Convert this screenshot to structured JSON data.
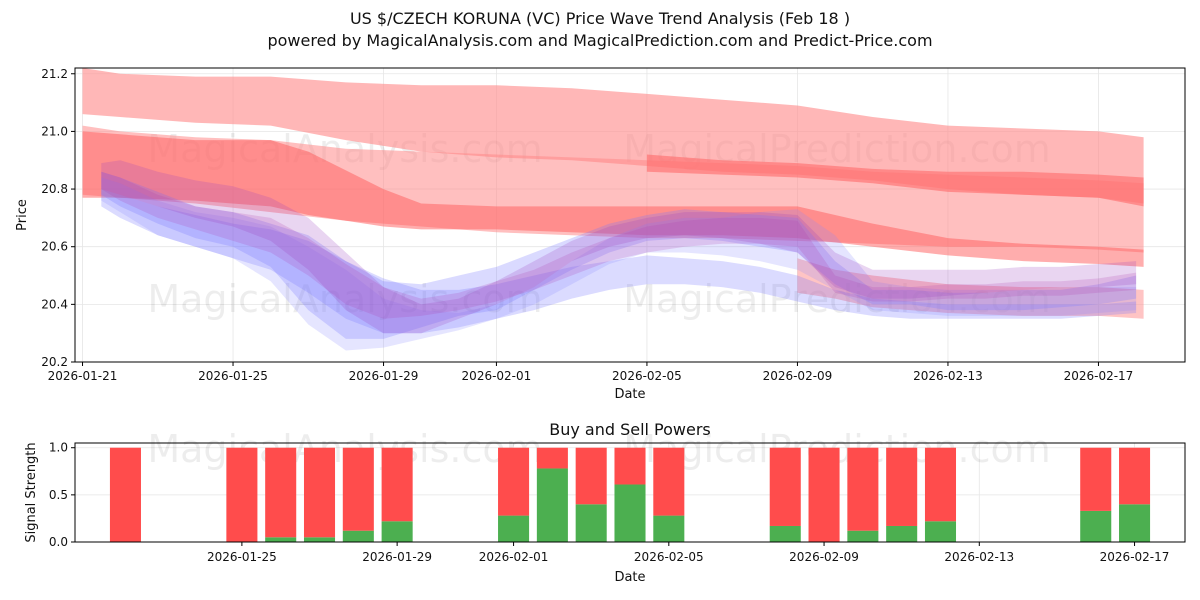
{
  "header": {
    "title": "US $/CZECH KORUNA (VC) Price Wave Trend Analysis (Feb 18 )",
    "subtitle": "powered by MagicalAnalysis.com and MagicalPrediction.com and Predict-Price.com"
  },
  "watermarks": [
    "MagicalAnalysis.com",
    "MagicalPrediction.com"
  ],
  "colors": {
    "buy": "#4caf50",
    "sell": "#ff4c4c",
    "blue_band": "#6f6fff",
    "red_band": "#ff6b6b",
    "purple_band": "#9a3fc0"
  },
  "chart_data": [
    {
      "type": "area",
      "title": "",
      "xlabel": "Date",
      "ylabel": "Price",
      "ylim": [
        20.2,
        21.22
      ],
      "xlim_days": [
        -0.2,
        29.3
      ],
      "x_origin": "2026-01-21",
      "x_ticks": [
        "2026-01-21",
        "2026-01-25",
        "2026-01-29",
        "2026-02-01",
        "2026-02-05",
        "2026-02-09",
        "2026-02-13",
        "2026-02-17"
      ],
      "x_tick_days": [
        0,
        4,
        8,
        11,
        15,
        19,
        23,
        27
      ],
      "y_ticks": [
        20.2,
        20.4,
        20.6,
        20.8,
        21.0,
        21.2
      ],
      "grid": true,
      "bands": [
        {
          "name": "red-wave-upper",
          "color": "#ff8a8a",
          "opacity": 0.62,
          "x": [
            0,
            1,
            3,
            5,
            7,
            9,
            11,
            13,
            15,
            17,
            19,
            21,
            23,
            25,
            27,
            28.2
          ],
          "upper": [
            21.22,
            21.2,
            21.19,
            21.19,
            21.17,
            21.16,
            21.16,
            21.15,
            21.13,
            21.11,
            21.09,
            21.05,
            21.02,
            21.01,
            21.0,
            20.98
          ],
          "lower": [
            21.06,
            21.05,
            21.03,
            21.02,
            20.97,
            20.93,
            20.91,
            20.9,
            20.88,
            20.86,
            20.85,
            20.83,
            20.8,
            20.78,
            20.77,
            20.75
          ]
        },
        {
          "name": "red-wave-broad",
          "color": "#ff8a8a",
          "opacity": 0.55,
          "x": [
            0,
            1,
            3,
            5,
            7,
            9,
            11,
            13,
            15,
            17,
            19,
            21,
            23,
            25,
            27,
            28.2
          ],
          "upper": [
            21.02,
            21.0,
            20.98,
            20.97,
            20.94,
            20.93,
            20.92,
            20.91,
            20.9,
            20.89,
            20.88,
            20.86,
            20.85,
            20.84,
            20.83,
            20.82
          ],
          "lower": [
            20.78,
            20.77,
            20.75,
            20.72,
            20.69,
            20.67,
            20.65,
            20.64,
            20.63,
            20.63,
            20.62,
            20.61,
            20.6,
            20.6,
            20.59,
            20.58
          ]
        },
        {
          "name": "red-wave-core",
          "color": "#ff5c5c",
          "opacity": 0.5,
          "x": [
            0,
            1,
            3,
            5,
            6,
            8,
            9,
            11,
            13,
            15,
            17,
            19,
            21,
            23,
            25,
            27,
            28.2
          ],
          "upper": [
            21.0,
            20.99,
            20.97,
            20.97,
            20.93,
            20.8,
            20.75,
            20.74,
            20.74,
            20.74,
            20.74,
            20.74,
            20.68,
            20.63,
            20.61,
            20.6,
            20.59
          ],
          "lower": [
            20.77,
            20.77,
            20.76,
            20.74,
            20.71,
            20.67,
            20.66,
            20.66,
            20.65,
            20.64,
            20.64,
            20.63,
            20.6,
            20.57,
            20.55,
            20.54,
            20.53
          ]
        },
        {
          "name": "red-wave-lower",
          "color": "#ff8a8a",
          "opacity": 0.5,
          "x": [
            19,
            20,
            21,
            23,
            25,
            27,
            28.2
          ],
          "upper": [
            20.56,
            20.52,
            20.5,
            20.47,
            20.46,
            20.46,
            20.45
          ],
          "lower": [
            20.44,
            20.42,
            20.39,
            20.37,
            20.36,
            20.36,
            20.35
          ]
        },
        {
          "name": "red-wave-upper-right",
          "color": "#ff6b6b",
          "opacity": 0.6,
          "x": [
            15,
            17,
            19,
            21,
            23,
            25,
            27,
            28.2
          ],
          "upper": [
            20.92,
            20.9,
            20.89,
            20.87,
            20.86,
            20.86,
            20.85,
            20.84
          ],
          "lower": [
            20.86,
            20.85,
            20.84,
            20.82,
            20.79,
            20.78,
            20.77,
            20.74
          ]
        },
        {
          "name": "blue-wave-1",
          "color": "#7b7bff",
          "opacity": 0.28,
          "x": [
            0.5,
            1,
            2,
            3,
            4,
            5,
            6,
            7,
            8,
            9,
            10,
            11,
            12,
            13,
            14,
            15,
            16,
            17,
            18,
            19,
            20,
            21,
            22,
            23,
            24,
            25,
            26,
            27,
            28
          ],
          "upper": [
            20.86,
            20.84,
            20.79,
            20.74,
            20.72,
            20.68,
            20.64,
            20.55,
            20.48,
            20.47,
            20.5,
            20.53,
            20.58,
            20.63,
            20.68,
            20.71,
            20.73,
            20.72,
            20.71,
            20.7,
            20.55,
            20.45,
            20.45,
            20.44,
            20.44,
            20.45,
            20.45,
            20.47,
            20.5
          ],
          "lower": [
            20.78,
            20.74,
            20.68,
            20.63,
            20.6,
            20.53,
            20.38,
            20.28,
            20.28,
            20.32,
            20.36,
            20.38,
            20.45,
            20.52,
            20.58,
            20.62,
            20.63,
            20.62,
            20.6,
            20.58,
            20.47,
            20.4,
            20.4,
            20.38,
            20.38,
            20.38,
            20.39,
            20.4,
            20.42
          ]
        },
        {
          "name": "blue-wave-2",
          "color": "#6f6fff",
          "opacity": 0.25,
          "x": [
            0.5,
            1,
            2,
            3,
            4,
            5,
            6,
            7,
            8,
            9,
            10,
            11,
            12,
            13,
            14,
            15,
            16,
            17,
            18,
            19,
            20,
            21,
            22,
            23,
            24,
            25,
            26,
            27,
            28
          ],
          "upper": [
            20.8,
            20.78,
            20.74,
            20.71,
            20.68,
            20.66,
            20.62,
            20.55,
            20.49,
            20.45,
            20.45,
            20.47,
            20.5,
            20.53,
            20.55,
            20.57,
            20.56,
            20.55,
            20.53,
            20.5,
            20.45,
            20.42,
            20.41,
            20.4,
            20.4,
            20.4,
            20.4,
            20.4,
            20.41
          ],
          "lower": [
            20.74,
            20.7,
            20.64,
            20.6,
            20.56,
            20.52,
            20.44,
            20.35,
            20.3,
            20.3,
            20.32,
            20.35,
            20.38,
            20.42,
            20.45,
            20.47,
            20.47,
            20.46,
            20.44,
            20.41,
            20.38,
            20.36,
            20.35,
            20.35,
            20.35,
            20.35,
            20.35,
            20.36,
            20.37
          ]
        },
        {
          "name": "blue-wave-3",
          "color": "#8a8aff",
          "opacity": 0.22,
          "x": [
            0.5,
            1,
            2,
            3,
            4,
            5,
            6,
            7,
            8,
            9,
            10,
            11,
            12,
            13,
            14,
            15,
            16,
            17,
            18,
            19,
            20,
            21,
            22,
            23,
            24,
            25,
            26,
            27,
            28
          ],
          "upper": [
            20.84,
            20.82,
            20.76,
            20.72,
            20.7,
            20.67,
            20.6,
            20.52,
            20.42,
            20.38,
            20.37,
            20.4,
            20.46,
            20.55,
            20.63,
            20.68,
            20.7,
            20.7,
            20.72,
            20.73,
            20.64,
            20.48,
            20.46,
            20.45,
            20.45,
            20.45,
            20.46,
            20.46,
            20.46
          ],
          "lower": [
            20.76,
            20.72,
            20.64,
            20.6,
            20.56,
            20.48,
            20.33,
            20.24,
            20.25,
            20.28,
            20.31,
            20.35,
            20.4,
            20.47,
            20.54,
            20.58,
            20.58,
            20.57,
            20.55,
            20.52,
            20.45,
            20.38,
            20.37,
            20.36,
            20.36,
            20.36,
            20.36,
            20.37,
            20.38
          ]
        },
        {
          "name": "purple-wave",
          "color": "#9a3fc0",
          "opacity": 0.22,
          "x": [
            0.5,
            1,
            2,
            3,
            4,
            5,
            6,
            7,
            8,
            9,
            10,
            11,
            12,
            13,
            14,
            15,
            16,
            17,
            18,
            19,
            20,
            21,
            22,
            23,
            24,
            25,
            26,
            27,
            28
          ],
          "upper": [
            20.89,
            20.9,
            20.86,
            20.83,
            20.81,
            20.77,
            20.7,
            20.58,
            20.46,
            20.4,
            20.42,
            20.48,
            20.55,
            20.62,
            20.67,
            20.7,
            20.72,
            20.72,
            20.72,
            20.71,
            20.58,
            20.52,
            20.52,
            20.52,
            20.52,
            20.53,
            20.53,
            20.54,
            20.55
          ],
          "lower": [
            20.8,
            20.78,
            20.74,
            20.7,
            20.67,
            20.62,
            20.52,
            20.38,
            20.3,
            20.3,
            20.35,
            20.4,
            20.46,
            20.55,
            20.6,
            20.63,
            20.64,
            20.63,
            20.61,
            20.58,
            20.46,
            20.42,
            20.42,
            20.43,
            20.44,
            20.45,
            20.46,
            20.46,
            20.47
          ]
        },
        {
          "name": "purple-wave-core",
          "color": "#b03ab0",
          "opacity": 0.2,
          "x": [
            0.5,
            1,
            2,
            3,
            4,
            5,
            6,
            7,
            8,
            9,
            10,
            11,
            12,
            13,
            14,
            15,
            16,
            17,
            18,
            19,
            20,
            21,
            22,
            23,
            24,
            25,
            26,
            27,
            28
          ],
          "upper": [
            20.86,
            20.84,
            20.78,
            20.74,
            20.72,
            20.7,
            20.63,
            20.54,
            20.46,
            20.42,
            20.44,
            20.48,
            20.52,
            20.58,
            20.63,
            20.67,
            20.69,
            20.7,
            20.7,
            20.69,
            20.5,
            20.46,
            20.46,
            20.47,
            20.47,
            20.48,
            20.48,
            20.49,
            20.51
          ],
          "lower": [
            20.8,
            20.76,
            20.7,
            20.66,
            20.62,
            20.58,
            20.5,
            20.4,
            20.35,
            20.36,
            20.38,
            20.41,
            20.45,
            20.5,
            20.55,
            20.58,
            20.6,
            20.61,
            20.61,
            20.6,
            20.44,
            20.41,
            20.41,
            20.42,
            20.42,
            20.43,
            20.43,
            20.44,
            20.45
          ]
        }
      ]
    },
    {
      "type": "bar",
      "title": "Buy and Sell Powers",
      "xlabel": "Date",
      "ylabel": "Signal Strength",
      "ylim": [
        0,
        1.05
      ],
      "xlim_days": [
        -0.3,
        28.3
      ],
      "x_origin": "2026-01-21",
      "x_ticks": [
        "2026-01-25",
        "2026-01-29",
        "2026-02-01",
        "2026-02-05",
        "2026-02-09",
        "2026-02-13",
        "2026-02-17"
      ],
      "x_tick_days": [
        4,
        8,
        11,
        15,
        19,
        23,
        27
      ],
      "y_ticks": [
        0.0,
        0.5,
        1.0
      ],
      "y_tick_labels": [
        "0.0",
        "0.5",
        "1.0"
      ],
      "grid": true,
      "series": [
        {
          "name": "Buy",
          "color": "#4caf50"
        },
        {
          "name": "Sell",
          "color": "#ff4c4c"
        }
      ],
      "bar_days": [
        1,
        4,
        5,
        6,
        7,
        8,
        11,
        12,
        13,
        14,
        15,
        18,
        19,
        20,
        21,
        22,
        26,
        27
      ],
      "buy": [
        0.0,
        0.0,
        0.05,
        0.05,
        0.12,
        0.22,
        0.28,
        0.78,
        0.4,
        0.61,
        0.28,
        0.17,
        0.0,
        0.12,
        0.17,
        0.22,
        0.33,
        0.4
      ],
      "sell": [
        1.0,
        1.0,
        0.95,
        0.95,
        0.88,
        0.78,
        0.72,
        0.22,
        0.6,
        0.39,
        0.72,
        0.83,
        1.0,
        0.88,
        0.83,
        0.78,
        0.67,
        0.6
      ]
    }
  ]
}
